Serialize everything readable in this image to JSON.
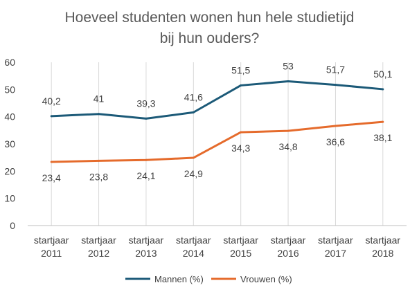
{
  "chart_data": {
    "type": "line",
    "title": [
      "Hoeveel studenten wonen hun hele studietijd",
      "bij hun ouders?"
    ],
    "categories": [
      [
        "startjaar",
        "2011"
      ],
      [
        "startjaar",
        "2012"
      ],
      [
        "startjaar",
        "2013"
      ],
      [
        "startjaar",
        "2014"
      ],
      [
        "startjaar",
        "2015"
      ],
      [
        "startjaar",
        "2016"
      ],
      [
        "startjaar",
        "2017"
      ],
      [
        "startjaar",
        "2018"
      ]
    ],
    "series": [
      {
        "name": "Mannen (%)",
        "color": "#1c5a78",
        "values": [
          40.2,
          41,
          39.3,
          41.6,
          51.5,
          53,
          51.7,
          50.1
        ],
        "labels": [
          "40,2",
          "41",
          "39,3",
          "41,6",
          "51,5",
          "53",
          "51,7",
          "50,1"
        ],
        "label_position": "above"
      },
      {
        "name": "Vrouwen (%)",
        "color": "#e56b2c",
        "values": [
          23.4,
          23.8,
          24.1,
          24.9,
          34.3,
          34.8,
          36.6,
          38.1
        ],
        "labels": [
          "23,4",
          "23,8",
          "24,1",
          "24,9",
          "34,3",
          "34,8",
          "36,6",
          "38,1"
        ],
        "label_position": "below"
      }
    ],
    "ylim": [
      0,
      60
    ],
    "yticks": [
      0,
      10,
      20,
      30,
      40,
      50,
      60
    ],
    "grid": "vertical",
    "legend": "bottom"
  }
}
